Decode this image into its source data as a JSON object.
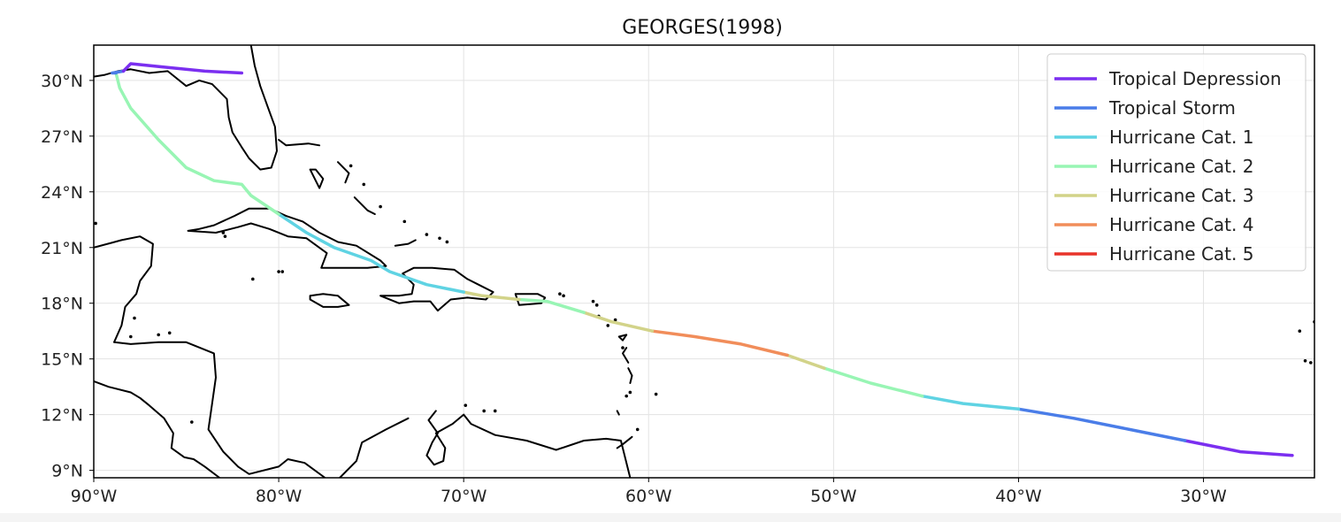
{
  "chart_data": {
    "type": "map",
    "title": "GEORGES(1998)",
    "xlim": [
      -90,
      -24
    ],
    "ylim": [
      8.6,
      31.9
    ],
    "x_ticks": [
      {
        "value": -90,
        "label": "90°W"
      },
      {
        "value": -80,
        "label": "80°W"
      },
      {
        "value": -70,
        "label": "70°W"
      },
      {
        "value": -60,
        "label": "60°W"
      },
      {
        "value": -50,
        "label": "50°W"
      },
      {
        "value": -40,
        "label": "40°W"
      },
      {
        "value": -30,
        "label": "30°W"
      }
    ],
    "y_ticks": [
      {
        "value": 9,
        "label": "9°N"
      },
      {
        "value": 12,
        "label": "12°N"
      },
      {
        "value": 15,
        "label": "15°N"
      },
      {
        "value": 18,
        "label": "18°N"
      },
      {
        "value": 21,
        "label": "21°N"
      },
      {
        "value": 24,
        "label": "24°N"
      },
      {
        "value": 27,
        "label": "27°N"
      },
      {
        "value": 30,
        "label": "30°N"
      }
    ],
    "grid": true,
    "legend_position": "top-right",
    "legend": [
      {
        "label": "Tropical Depression",
        "color": "#7b2ff0"
      },
      {
        "label": "Tropical Storm",
        "color": "#4a7de8"
      },
      {
        "label": "Hurricane Cat. 1",
        "color": "#5fd3e3"
      },
      {
        "label": "Hurricane Cat. 2",
        "color": "#98f5b4"
      },
      {
        "label": "Hurricane Cat. 3",
        "color": "#d2d389"
      },
      {
        "label": "Hurricane Cat. 4",
        "color": "#f18d5a"
      },
      {
        "label": "Hurricane Cat. 5",
        "color": "#e8332a"
      }
    ],
    "track_segments": [
      {
        "category": "Tropical Depression",
        "color": "#7b2ff0",
        "points": [
          [
            -25.2,
            9.8
          ],
          [
            -28.0,
            10.0
          ],
          [
            -31.0,
            10.6
          ]
        ]
      },
      {
        "category": "Tropical Storm",
        "color": "#4a7de8",
        "points": [
          [
            -31.0,
            10.6
          ],
          [
            -34.0,
            11.2
          ],
          [
            -37.0,
            11.8
          ],
          [
            -40.0,
            12.3
          ]
        ]
      },
      {
        "category": "Hurricane Cat. 1",
        "color": "#5fd3e3",
        "points": [
          [
            -40.0,
            12.3
          ],
          [
            -43.0,
            12.6
          ],
          [
            -45.2,
            13.0
          ]
        ]
      },
      {
        "category": "Hurricane Cat. 2",
        "color": "#98f5b4",
        "points": [
          [
            -45.2,
            13.0
          ],
          [
            -48.0,
            13.7
          ],
          [
            -50.5,
            14.5
          ]
        ]
      },
      {
        "category": "Hurricane Cat. 3",
        "color": "#d2d389",
        "points": [
          [
            -50.5,
            14.5
          ],
          [
            -52.5,
            15.2
          ]
        ]
      },
      {
        "category": "Hurricane Cat. 4",
        "color": "#f18d5a",
        "points": [
          [
            -52.5,
            15.2
          ],
          [
            -55.0,
            15.8
          ],
          [
            -57.5,
            16.2
          ],
          [
            -59.8,
            16.5
          ]
        ]
      },
      {
        "category": "Hurricane Cat. 3",
        "color": "#d2d389",
        "points": [
          [
            -59.8,
            16.5
          ],
          [
            -62.0,
            17.0
          ],
          [
            -63.5,
            17.5
          ]
        ]
      },
      {
        "category": "Hurricane Cat. 2",
        "color": "#98f5b4",
        "points": [
          [
            -63.5,
            17.5
          ],
          [
            -65.5,
            18.1
          ],
          [
            -67.0,
            18.2
          ]
        ]
      },
      {
        "category": "Hurricane Cat. 3",
        "color": "#d2d389",
        "points": [
          [
            -67.0,
            18.2
          ],
          [
            -69.0,
            18.4
          ],
          [
            -70.0,
            18.6
          ]
        ]
      },
      {
        "category": "Hurricane Cat. 1",
        "color": "#5fd3e3",
        "points": [
          [
            -70.0,
            18.6
          ],
          [
            -72.0,
            19.0
          ],
          [
            -74.0,
            19.7
          ],
          [
            -75.0,
            20.3
          ],
          [
            -77.0,
            21.0
          ],
          [
            -78.5,
            21.8
          ],
          [
            -80.0,
            22.8
          ]
        ]
      },
      {
        "category": "Hurricane Cat. 2",
        "color": "#98f5b4",
        "points": [
          [
            -80.0,
            22.8
          ],
          [
            -81.5,
            23.8
          ],
          [
            -82.0,
            24.4
          ],
          [
            -83.5,
            24.6
          ],
          [
            -85.0,
            25.3
          ],
          [
            -86.5,
            26.8
          ],
          [
            -88.0,
            28.5
          ],
          [
            -88.6,
            29.6
          ],
          [
            -88.8,
            30.4
          ]
        ]
      },
      {
        "category": "Tropical Storm",
        "color": "#4a7de8",
        "points": [
          [
            -88.8,
            30.4
          ],
          [
            -89.0,
            30.4
          ],
          [
            -88.4,
            30.5
          ]
        ]
      },
      {
        "category": "Tropical Depression",
        "color": "#7b2ff0",
        "points": [
          [
            -88.4,
            30.5
          ],
          [
            -88.0,
            30.9
          ],
          [
            -86.0,
            30.7
          ],
          [
            -84.0,
            30.5
          ],
          [
            -82.0,
            30.4
          ]
        ]
      }
    ],
    "coastlines": [
      [
        [
          -90,
          30.2
        ],
        [
          -89.4,
          30.3
        ],
        [
          -88.7,
          30.5
        ],
        [
          -88.0,
          30.6
        ],
        [
          -87.0,
          30.4
        ],
        [
          -86.0,
          30.5
        ],
        [
          -85.0,
          29.7
        ],
        [
          -84.3,
          30.0
        ],
        [
          -83.6,
          29.8
        ],
        [
          -82.8,
          29.0
        ],
        [
          -82.7,
          28.0
        ],
        [
          -82.5,
          27.2
        ],
        [
          -82.0,
          26.4
        ],
        [
          -81.6,
          25.8
        ],
        [
          -81.0,
          25.2
        ],
        [
          -80.4,
          25.3
        ],
        [
          -80.1,
          26.2
        ],
        [
          -80.2,
          27.5
        ],
        [
          -80.6,
          28.6
        ],
        [
          -81.0,
          29.7
        ],
        [
          -81.3,
          30.8
        ],
        [
          -81.5,
          31.9
        ]
      ],
      [
        [
          -90,
          21.0
        ],
        [
          -88.5,
          21.4
        ],
        [
          -87.5,
          21.6
        ],
        [
          -86.8,
          21.2
        ],
        [
          -86.9,
          20.0
        ],
        [
          -87.5,
          19.2
        ],
        [
          -87.7,
          18.5
        ],
        [
          -88.3,
          17.8
        ],
        [
          -88.5,
          16.8
        ],
        [
          -88.9,
          15.9
        ],
        [
          -88.0,
          15.8
        ],
        [
          -86.5,
          15.9
        ],
        [
          -85.0,
          15.9
        ],
        [
          -83.5,
          15.3
        ],
        [
          -83.4,
          14.0
        ],
        [
          -83.6,
          12.6
        ],
        [
          -83.8,
          11.2
        ],
        [
          -83.0,
          10.0
        ],
        [
          -82.2,
          9.2
        ],
        [
          -81.6,
          8.8
        ],
        [
          -80.0,
          9.2
        ],
        [
          -79.5,
          9.6
        ],
        [
          -78.6,
          9.4
        ],
        [
          -77.5,
          8.6
        ]
      ],
      [
        [
          -90,
          13.8
        ],
        [
          -89.2,
          13.5
        ],
        [
          -88.0,
          13.2
        ],
        [
          -87.5,
          12.9
        ],
        [
          -87.0,
          12.5
        ],
        [
          -86.2,
          11.8
        ],
        [
          -85.7,
          11.0
        ],
        [
          -85.8,
          10.2
        ],
        [
          -85.1,
          9.7
        ],
        [
          -84.6,
          9.6
        ],
        [
          -84.0,
          9.2
        ],
        [
          -83.2,
          8.6
        ]
      ],
      [
        [
          -84.9,
          21.9
        ],
        [
          -84.3,
          22.0
        ],
        [
          -83.5,
          22.2
        ],
        [
          -82.4,
          22.7
        ],
        [
          -81.6,
          23.1
        ],
        [
          -80.5,
          23.1
        ],
        [
          -79.6,
          22.7
        ],
        [
          -78.7,
          22.4
        ],
        [
          -77.8,
          21.8
        ],
        [
          -76.8,
          21.3
        ],
        [
          -75.8,
          21.1
        ],
        [
          -74.5,
          20.3
        ],
        [
          -74.2,
          20.0
        ],
        [
          -75.2,
          19.9
        ],
        [
          -76.5,
          19.9
        ],
        [
          -77.7,
          19.9
        ],
        [
          -77.4,
          20.7
        ],
        [
          -78.5,
          21.5
        ],
        [
          -79.5,
          21.6
        ],
        [
          -80.5,
          22.0
        ],
        [
          -81.5,
          22.3
        ],
        [
          -82.2,
          22.1
        ],
        [
          -83.4,
          21.8
        ],
        [
          -84.9,
          21.9
        ]
      ],
      [
        [
          -78.3,
          18.4
        ],
        [
          -77.6,
          18.5
        ],
        [
          -76.8,
          18.4
        ],
        [
          -76.2,
          17.9
        ],
        [
          -76.8,
          17.8
        ],
        [
          -77.6,
          17.8
        ],
        [
          -78.3,
          18.2
        ],
        [
          -78.3,
          18.4
        ]
      ],
      [
        [
          -74.5,
          18.4
        ],
        [
          -73.5,
          18.4
        ],
        [
          -72.8,
          18.5
        ],
        [
          -72.7,
          19.0
        ],
        [
          -73.3,
          19.6
        ],
        [
          -72.7,
          19.9
        ],
        [
          -71.7,
          19.9
        ],
        [
          -70.5,
          19.8
        ],
        [
          -69.8,
          19.3
        ],
        [
          -69.2,
          19.0
        ],
        [
          -68.4,
          18.6
        ],
        [
          -68.8,
          18.2
        ],
        [
          -69.8,
          18.3
        ],
        [
          -70.7,
          18.2
        ],
        [
          -71.4,
          17.6
        ],
        [
          -71.8,
          18.1
        ],
        [
          -72.7,
          18.1
        ],
        [
          -73.5,
          18.0
        ],
        [
          -74.5,
          18.4
        ]
      ],
      [
        [
          -67.2,
          18.5
        ],
        [
          -66.0,
          18.5
        ],
        [
          -65.6,
          18.3
        ],
        [
          -65.8,
          18.0
        ],
        [
          -67.0,
          17.9
        ],
        [
          -67.2,
          18.5
        ]
      ],
      [
        [
          -71.5,
          12.2
        ],
        [
          -71.9,
          11.7
        ],
        [
          -71.4,
          11.0
        ],
        [
          -71.7,
          10.5
        ],
        [
          -72.0,
          9.8
        ],
        [
          -71.6,
          9.3
        ],
        [
          -71.1,
          9.5
        ],
        [
          -71.0,
          10.2
        ],
        [
          -71.5,
          11.0
        ],
        [
          -70.6,
          11.5
        ],
        [
          -70.0,
          12.0
        ],
        [
          -69.6,
          11.5
        ],
        [
          -68.3,
          10.9
        ],
        [
          -66.6,
          10.6
        ],
        [
          -65.0,
          10.1
        ],
        [
          -63.5,
          10.6
        ],
        [
          -62.3,
          10.7
        ],
        [
          -61.5,
          10.6
        ],
        [
          -61.0,
          8.6
        ]
      ],
      [
        [
          -73.0,
          11.8
        ],
        [
          -74.2,
          11.2
        ],
        [
          -75.5,
          10.5
        ],
        [
          -75.8,
          9.5
        ],
        [
          -76.7,
          8.6
        ]
      ],
      [
        [
          -80.0,
          26.8
        ],
        [
          -79.6,
          26.5
        ],
        [
          -78.4,
          26.6
        ],
        [
          -77.8,
          26.5
        ]
      ],
      [
        [
          -78.3,
          25.2
        ],
        [
          -77.8,
          24.2
        ],
        [
          -77.6,
          24.7
        ],
        [
          -78.0,
          25.2
        ],
        [
          -78.3,
          25.2
        ]
      ],
      [
        [
          -76.8,
          25.6
        ],
        [
          -76.2,
          25.0
        ],
        [
          -76.4,
          24.5
        ]
      ],
      [
        [
          -75.9,
          23.7
        ],
        [
          -75.2,
          23.0
        ],
        [
          -74.8,
          22.8
        ]
      ],
      [
        [
          -73.7,
          21.1
        ],
        [
          -73.0,
          21.2
        ],
        [
          -72.6,
          21.4
        ]
      ],
      [
        [
          -61.6,
          16.2
        ],
        [
          -61.2,
          16.3
        ],
        [
          -61.4,
          16.0
        ],
        [
          -61.6,
          16.2
        ]
      ],
      [
        [
          -61.2,
          15.6
        ],
        [
          -61.4,
          15.3
        ],
        [
          -61.1,
          14.8
        ]
      ],
      [
        [
          -61.1,
          14.5
        ],
        [
          -60.9,
          14.1
        ],
        [
          -61.0,
          13.7
        ]
      ],
      [
        [
          -61.7,
          12.2
        ],
        [
          -61.6,
          12.0
        ]
      ],
      [
        [
          -60.9,
          10.8
        ],
        [
          -61.4,
          10.4
        ],
        [
          -61.7,
          10.2
        ]
      ]
    ],
    "islands": [
      [
        -76.1,
        25.4
      ],
      [
        -75.4,
        24.4
      ],
      [
        -74.5,
        23.2
      ],
      [
        -73.2,
        22.4
      ],
      [
        -72.0,
        21.7
      ],
      [
        -71.3,
        21.5
      ],
      [
        -70.9,
        21.3
      ],
      [
        -64.8,
        18.5
      ],
      [
        -64.6,
        18.4
      ],
      [
        -63.0,
        18.1
      ],
      [
        -62.8,
        17.9
      ],
      [
        -62.7,
        17.3
      ],
      [
        -61.8,
        17.1
      ],
      [
        -62.2,
        16.8
      ],
      [
        -61.4,
        15.6
      ],
      [
        -61.0,
        13.2
      ],
      [
        -61.2,
        13.0
      ],
      [
        -59.6,
        13.1
      ],
      [
        -60.6,
        11.2
      ],
      [
        -68.9,
        12.2
      ],
      [
        -69.9,
        12.5
      ],
      [
        -68.3,
        12.2
      ],
      [
        -81.4,
        19.3
      ],
      [
        -80.0,
        19.7
      ],
      [
        -79.8,
        19.7
      ],
      [
        -82.9,
        21.6
      ],
      [
        -83.0,
        21.8
      ],
      [
        -85.9,
        16.4
      ],
      [
        -86.5,
        16.3
      ],
      [
        -87.8,
        17.2
      ],
      [
        -89.9,
        22.3
      ],
      [
        -88.0,
        16.2
      ],
      [
        -84.7,
        11.6
      ],
      [
        -24.8,
        16.5
      ],
      [
        -23.9,
        16.9
      ],
      [
        -24.5,
        14.9
      ],
      [
        -24.2,
        14.8
      ],
      [
        -24.0,
        17.0
      ]
    ]
  }
}
